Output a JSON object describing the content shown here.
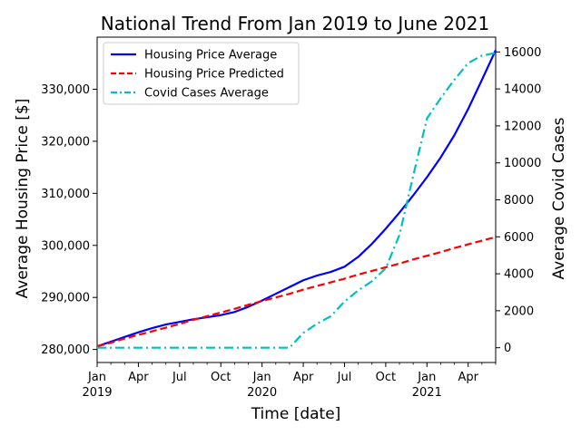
{
  "chart_data": {
    "type": "line",
    "title": "National Trend From Jan 2019 to June 2021",
    "xlabel": "Time [date]",
    "ylabel": "Average Housing Price [$]",
    "y2label": "Average Covid Cases",
    "x_dates": [
      "2019-01",
      "2019-02",
      "2019-03",
      "2019-04",
      "2019-05",
      "2019-06",
      "2019-07",
      "2019-08",
      "2019-09",
      "2019-10",
      "2019-11",
      "2019-12",
      "2020-01",
      "2020-02",
      "2020-03",
      "2020-04",
      "2020-05",
      "2020-06",
      "2020-07",
      "2020-08",
      "2020-09",
      "2020-10",
      "2020-11",
      "2020-12",
      "2021-01",
      "2021-02",
      "2021-03",
      "2021-04",
      "2021-05",
      "2021-06"
    ],
    "xlim": [
      "2019-01-01",
      "2021-06-01"
    ],
    "ylim": [
      277500,
      340000
    ],
    "y2lim": [
      -800,
      16800
    ],
    "x_ticks": [
      {
        "date": "2019-01",
        "label": "Jan",
        "year": "2019"
      },
      {
        "date": "2019-04",
        "label": "Apr",
        "year": ""
      },
      {
        "date": "2019-07",
        "label": "Jul",
        "year": ""
      },
      {
        "date": "2019-10",
        "label": "Oct",
        "year": ""
      },
      {
        "date": "2020-01",
        "label": "Jan",
        "year": "2020"
      },
      {
        "date": "2020-04",
        "label": "Apr",
        "year": ""
      },
      {
        "date": "2020-07",
        "label": "Jul",
        "year": ""
      },
      {
        "date": "2020-10",
        "label": "Oct",
        "year": ""
      },
      {
        "date": "2021-01",
        "label": "Jan",
        "year": "2021"
      },
      {
        "date": "2021-04",
        "label": "Apr",
        "year": ""
      }
    ],
    "y_ticks": [
      280000,
      290000,
      300000,
      310000,
      320000,
      330000
    ],
    "y_tick_labels": [
      "280,000",
      "290,000",
      "300,000",
      "310,000",
      "320,000",
      "330,000"
    ],
    "y2_ticks": [
      0,
      2000,
      4000,
      6000,
      8000,
      10000,
      12000,
      14000,
      16000
    ],
    "y2_tick_labels": [
      "0",
      "2000",
      "4000",
      "6000",
      "8000",
      "10000",
      "12000",
      "14000",
      "16000"
    ],
    "legend_position": "top-left",
    "series": [
      {
        "name": "Housing Price Average",
        "axis": "left",
        "color": "#0000ff",
        "style": "solid",
        "values": [
          280600,
          281500,
          282400,
          283300,
          284100,
          284800,
          285300,
          285800,
          286200,
          286600,
          287200,
          288200,
          289400,
          290700,
          292000,
          293300,
          294200,
          294900,
          295900,
          297800,
          300300,
          303200,
          306300,
          309600,
          313100,
          316900,
          321200,
          326200,
          331800,
          337500
        ]
      },
      {
        "name": "Housing Price Predicted",
        "axis": "left",
        "color": "#ff0000",
        "style": "dashed",
        "values": [
          280600,
          281300,
          282100,
          282800,
          283500,
          284200,
          284900,
          285700,
          286400,
          287100,
          287800,
          288600,
          289300,
          290000,
          290700,
          291500,
          292200,
          292900,
          293600,
          294400,
          295100,
          295800,
          296500,
          297300,
          298000,
          298700,
          299500,
          300200,
          300900,
          301600
        ]
      },
      {
        "name": "Covid Cases Average",
        "axis": "right",
        "color": "#00bfbf",
        "style": "dashdot",
        "values": [
          0,
          0,
          0,
          0,
          0,
          0,
          0,
          0,
          0,
          0,
          0,
          0,
          0,
          0,
          0,
          800,
          1300,
          1700,
          2500,
          3100,
          3600,
          4300,
          6100,
          9300,
          12400,
          13500,
          14500,
          15400,
          15800,
          15950
        ]
      }
    ]
  }
}
